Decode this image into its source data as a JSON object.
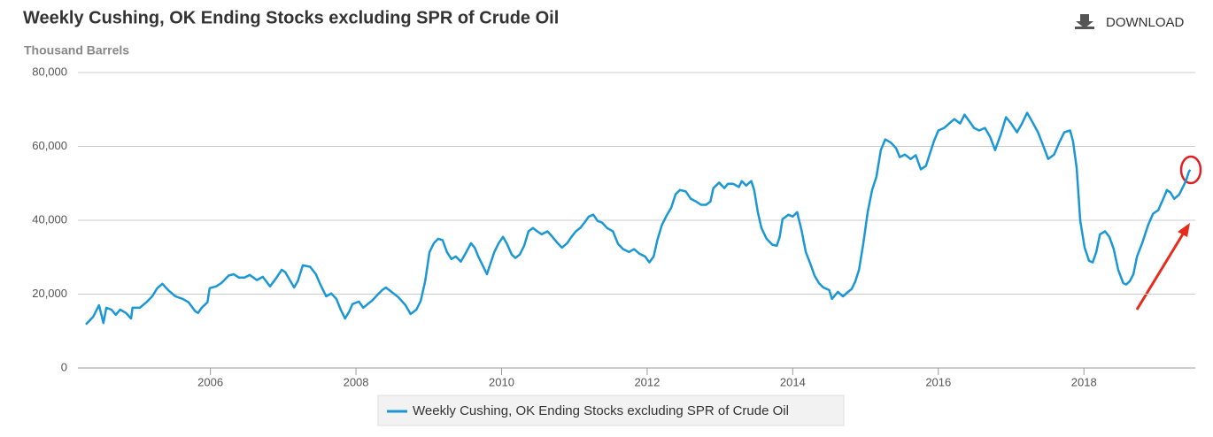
{
  "download_label": "DOWNLOAD",
  "chart_data": {
    "type": "line",
    "title": "Weekly Cushing, OK Ending Stocks excluding SPR of Crude Oil",
    "y_label": "Thousand Barrels",
    "xlim": [
      2004.18,
      2019.53
    ],
    "xticks": [
      2006,
      2008,
      2010,
      2012,
      2014,
      2016,
      2018
    ],
    "ylim": [
      0,
      80000
    ],
    "yticks": [
      0,
      {
        "value": 20000,
        "label": "20,000"
      },
      {
        "value": 40000,
        "label": "40,000"
      },
      {
        "value": 60000,
        "label": "60,000"
      },
      {
        "value": 80000,
        "label": "80,000"
      }
    ],
    "grid": true,
    "legend": "bottom",
    "x": [
      2004.29,
      2004.39,
      2004.47,
      2004.53,
      2004.57,
      2004.64,
      2004.7,
      2004.76,
      2004.84,
      2004.91,
      2004.93,
      2005.03,
      2005.12,
      2005.2,
      2005.27,
      2005.34,
      2005.42,
      2005.52,
      2005.62,
      2005.7,
      2005.79,
      2005.83,
      2005.88,
      2005.96,
      2005.99,
      2006.08,
      2006.15,
      2006.25,
      2006.32,
      2006.39,
      2006.47,
      2006.54,
      2006.64,
      2006.72,
      2006.82,
      2006.91,
      2006.98,
      2007.03,
      2007.1,
      2007.15,
      2007.2,
      2007.27,
      2007.37,
      2007.45,
      2007.51,
      2007.59,
      2007.66,
      2007.73,
      2007.79,
      2007.85,
      2007.91,
      2007.95,
      2008.04,
      2008.1,
      2008.16,
      2008.22,
      2008.29,
      2008.36,
      2008.41,
      2008.49,
      2008.58,
      2008.68,
      2008.75,
      2008.83,
      2008.89,
      2008.95,
      2009.01,
      2009.07,
      2009.13,
      2009.19,
      2009.25,
      2009.31,
      2009.37,
      2009.44,
      2009.51,
      2009.58,
      2009.63,
      2009.68,
      2009.74,
      2009.8,
      2009.84,
      2009.9,
      2009.96,
      2010.02,
      2010.07,
      2010.14,
      2010.19,
      2010.25,
      2010.31,
      2010.37,
      2010.43,
      2010.49,
      2010.55,
      2010.63,
      2010.7,
      2010.77,
      2010.83,
      2010.9,
      2010.96,
      2011.02,
      2011.08,
      2011.14,
      2011.2,
      2011.26,
      2011.32,
      2011.38,
      2011.45,
      2011.53,
      2011.6,
      2011.67,
      2011.75,
      2011.82,
      2011.89,
      2011.97,
      2012.03,
      2012.09,
      2012.14,
      2012.2,
      2012.26,
      2012.33,
      2012.39,
      2012.45,
      2012.53,
      2012.6,
      2012.67,
      2012.74,
      2012.81,
      2012.87,
      2012.91,
      2012.99,
      2013.06,
      2013.11,
      2013.18,
      2013.26,
      2013.3,
      2013.36,
      2013.43,
      2013.47,
      2013.52,
      2013.57,
      2013.64,
      2013.72,
      2013.78,
      2013.82,
      2013.86,
      2013.94,
      2014.0,
      2014.06,
      2014.12,
      2014.18,
      2014.24,
      2014.3,
      2014.36,
      2014.42,
      2014.5,
      2014.54,
      2014.62,
      2014.69,
      2014.76,
      2014.81,
      2014.86,
      2014.91,
      2014.97,
      2015.03,
      2015.09,
      2015.15,
      2015.21,
      2015.27,
      2015.35,
      2015.42,
      2015.47,
      2015.54,
      2015.62,
      2015.69,
      2015.76,
      2015.83,
      2015.88,
      2015.94,
      2016.0,
      2016.08,
      2016.15,
      2016.22,
      2016.3,
      2016.36,
      2016.43,
      2016.49,
      2016.56,
      2016.64,
      2016.71,
      2016.78,
      2016.86,
      2016.93,
      2017.0,
      2017.08,
      2017.15,
      2017.22,
      2017.29,
      2017.37,
      2017.44,
      2017.51,
      2017.59,
      2017.66,
      2017.73,
      2017.81,
      2017.85,
      2017.9,
      2017.95,
      2018.01,
      2018.07,
      2018.12,
      2018.17,
      2018.22,
      2018.29,
      2018.35,
      2018.41,
      2018.47,
      2018.54,
      2018.58,
      2018.63,
      2018.68,
      2018.73,
      2018.8,
      2018.88,
      2018.95,
      2019.02,
      2019.09,
      2019.14,
      2019.19,
      2019.24,
      2019.31,
      2019.37,
      2019.4,
      2019.44,
      2019.46
    ],
    "series": [
      {
        "name": "Weekly Cushing, OK Ending Stocks excluding SPR of Crude Oil",
        "color": "#1a97d4",
        "values": [
          11800,
          13900,
          17000,
          12200,
          16300,
          15800,
          14400,
          15800,
          14900,
          13400,
          16300,
          16300,
          17800,
          19400,
          21600,
          22800,
          21100,
          19400,
          18700,
          17800,
          15400,
          14900,
          16300,
          17800,
          21600,
          22100,
          23000,
          25000,
          25400,
          24500,
          24500,
          25200,
          23800,
          24700,
          22100,
          24500,
          26600,
          25900,
          23500,
          21800,
          23500,
          27800,
          27400,
          25400,
          22600,
          19400,
          20200,
          18700,
          15800,
          13400,
          15400,
          17300,
          18000,
          16300,
          17300,
          18200,
          19700,
          21100,
          21800,
          20600,
          19200,
          17000,
          14600,
          15800,
          18200,
          23500,
          31400,
          33800,
          35000,
          34600,
          31400,
          29500,
          30200,
          28800,
          31200,
          33800,
          32600,
          30200,
          27800,
          25400,
          27800,
          31400,
          33800,
          35500,
          33800,
          30700,
          29800,
          30700,
          33100,
          37000,
          37900,
          37000,
          36200,
          37000,
          35500,
          33800,
          32600,
          33800,
          35500,
          37000,
          37900,
          39400,
          41000,
          41500,
          39800,
          39400,
          37900,
          37000,
          33600,
          32200,
          31400,
          32200,
          31000,
          30200,
          28600,
          30200,
          34600,
          38600,
          41000,
          43400,
          47000,
          48200,
          47800,
          45800,
          45100,
          44200,
          44200,
          45100,
          48700,
          50200,
          48700,
          49900,
          49900,
          49000,
          50600,
          49400,
          50600,
          48200,
          42200,
          37900,
          35000,
          33400,
          33100,
          35500,
          40300,
          41500,
          41000,
          42200,
          37400,
          31400,
          28300,
          25000,
          23000,
          21800,
          21100,
          18700,
          20600,
          19400,
          20600,
          21400,
          23500,
          26600,
          33800,
          42200,
          48200,
          51800,
          59000,
          61900,
          61000,
          59500,
          57100,
          57800,
          56600,
          57600,
          53800,
          54700,
          57800,
          61400,
          64300,
          65000,
          66200,
          67400,
          66200,
          68600,
          66700,
          65000,
          64300,
          65000,
          62600,
          59000,
          63400,
          67900,
          66200,
          63800,
          66200,
          69100,
          66700,
          63800,
          60200,
          56600,
          57800,
          61000,
          63800,
          64300,
          61400,
          54200,
          39800,
          32600,
          29000,
          28600,
          31400,
          36200,
          37000,
          35500,
          32200,
          26600,
          23000,
          22600,
          23500,
          25400,
          30200,
          33800,
          38600,
          41800,
          42700,
          45800,
          48200,
          47500,
          45800,
          47000,
          49400,
          50600,
          53000,
          53700
        ]
      }
    ]
  }
}
